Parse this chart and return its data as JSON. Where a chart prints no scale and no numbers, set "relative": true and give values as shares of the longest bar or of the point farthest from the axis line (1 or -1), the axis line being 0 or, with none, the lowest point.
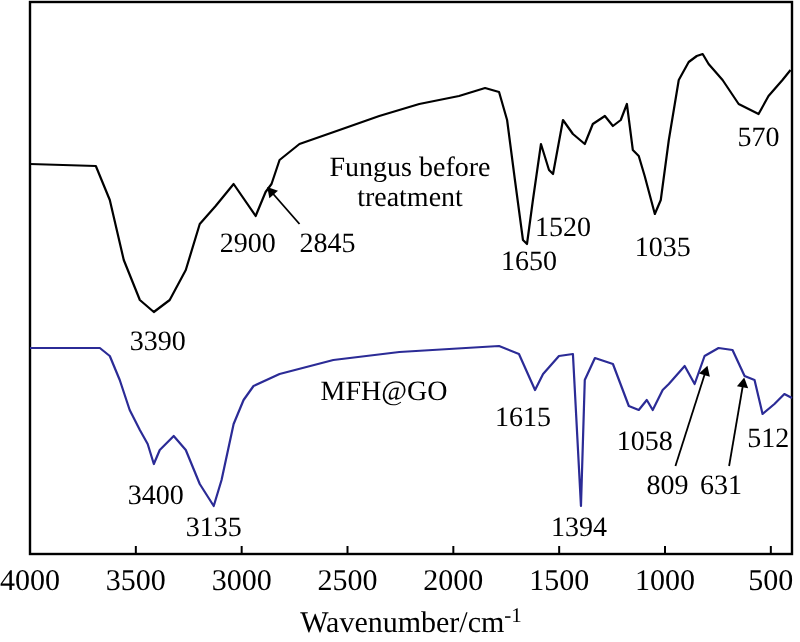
{
  "chart_data": {
    "type": "line",
    "relative": true,
    "xlabel": "Wavenumber/cm$^{-1}$",
    "xlim": [
      4000,
      400
    ],
    "xticks": [
      4000,
      3500,
      3000,
      2500,
      2000,
      1500,
      1000,
      500
    ],
    "grid": false,
    "line_style": "solid",
    "series": [
      {
        "name": "Fungus before treatment",
        "color": "#000000",
        "x": [
          4000,
          3689,
          3623,
          3557,
          3481,
          3415,
          3340,
          3264,
          3198,
          3123,
          3038,
          2934,
          2887,
          2859,
          2821,
          2727,
          2538,
          2350,
          2161,
          1973,
          1850,
          1784,
          1746,
          1709,
          1671,
          1652,
          1624,
          1586,
          1548,
          1529,
          1482,
          1435,
          1379,
          1341,
          1284,
          1246,
          1209,
          1180,
          1152,
          1124,
          1096,
          1048,
          1020,
          982,
          935,
          888,
          850,
          822,
          794,
          728,
          652,
          558,
          511,
          445,
          407
        ],
        "values": [
          0.78,
          0.776,
          0.708,
          0.588,
          0.508,
          0.484,
          0.508,
          0.568,
          0.66,
          0.696,
          0.74,
          0.676,
          0.724,
          0.74,
          0.788,
          0.82,
          0.848,
          0.876,
          0.9,
          0.916,
          0.932,
          0.924,
          0.868,
          0.748,
          0.628,
          0.62,
          0.708,
          0.82,
          0.768,
          0.76,
          0.868,
          0.84,
          0.82,
          0.86,
          0.876,
          0.856,
          0.868,
          0.9,
          0.808,
          0.796,
          0.756,
          0.68,
          0.708,
          0.828,
          0.948,
          0.984,
          0.996,
          1.0,
          0.98,
          0.948,
          0.9,
          0.88,
          0.916,
          0.948,
          0.968
        ]
      },
      {
        "name": "MFH@GO",
        "color": "#2b2b96",
        "x": [
          4000,
          3670,
          3623,
          3576,
          3529,
          3481,
          3444,
          3415,
          3387,
          3321,
          3264,
          3198,
          3132,
          3095,
          3038,
          2991,
          2944,
          2821,
          2567,
          2255,
          1784,
          1690,
          1614,
          1576,
          1501,
          1435,
          1397,
          1379,
          1331,
          1246,
          1171,
          1124,
          1086,
          1058,
          1011,
          982,
          907,
          860,
          813,
          747,
          681,
          624,
          577,
          539,
          483,
          436,
          400
        ],
        "values": [
          0.412,
          0.412,
          0.396,
          0.348,
          0.288,
          0.248,
          0.22,
          0.18,
          0.208,
          0.236,
          0.208,
          0.14,
          0.096,
          0.148,
          0.26,
          0.308,
          0.336,
          0.36,
          0.388,
          0.404,
          0.416,
          0.4,
          0.328,
          0.36,
          0.396,
          0.4,
          0.096,
          0.348,
          0.392,
          0.38,
          0.296,
          0.288,
          0.308,
          0.288,
          0.328,
          0.34,
          0.376,
          0.34,
          0.396,
          0.412,
          0.408,
          0.356,
          0.348,
          0.28,
          0.3,
          0.32,
          0.312
        ]
      }
    ],
    "annotations": [
      {
        "text": "3390",
        "x": 3415,
        "y": 0.484
      },
      {
        "text": "2900",
        "x": 2934,
        "y": 0.676
      },
      {
        "text": "2845",
        "x": 2859,
        "y": 0.74
      },
      {
        "text": "1650",
        "x": 1652,
        "y": 0.62
      },
      {
        "text": "1520",
        "x": 1529,
        "y": 0.76
      },
      {
        "text": "1035",
        "x": 1048,
        "y": 0.68
      },
      {
        "text": "570",
        "x": 558,
        "y": 0.88
      },
      {
        "text": "3400",
        "x": 3415,
        "y": 0.18
      },
      {
        "text": "3135",
        "x": 3132,
        "y": 0.096
      },
      {
        "text": "1615",
        "x": 1614,
        "y": 0.328
      },
      {
        "text": "1394",
        "x": 1397,
        "y": 0.096
      },
      {
        "text": "1058",
        "x": 1058,
        "y": 0.288
      },
      {
        "text": "809",
        "x": 809,
        "y": 0.38
      },
      {
        "text": "631",
        "x": 631,
        "y": 0.356
      },
      {
        "text": "512",
        "x": 512,
        "y": 0.29
      }
    ]
  }
}
